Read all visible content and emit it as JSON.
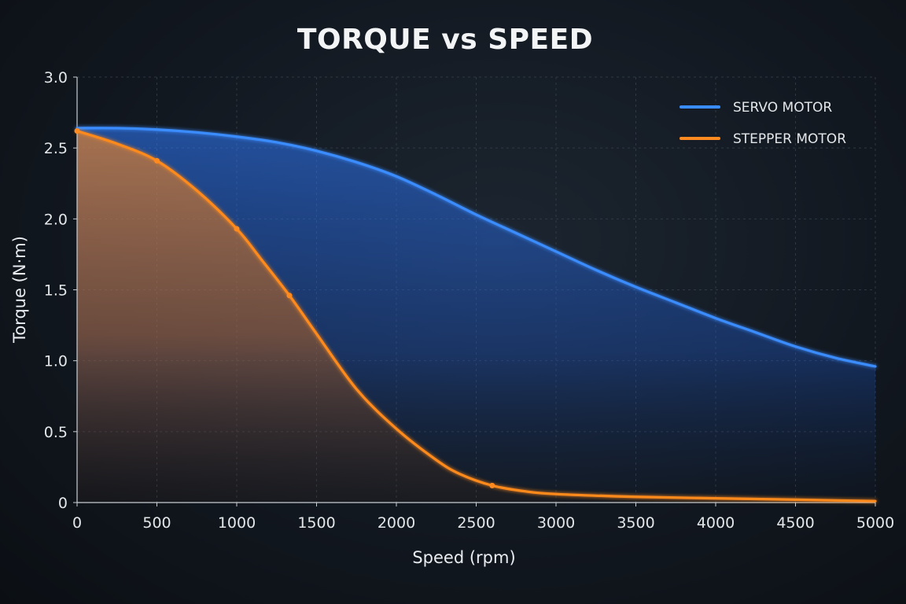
{
  "chart_data": {
    "type": "area",
    "title": "TORQUE vs SPEED",
    "xlabel": "Speed (rpm)",
    "ylabel": "Torque (N·m)",
    "xlim": [
      0,
      5000
    ],
    "ylim": [
      0,
      3.0
    ],
    "x_ticks": [
      "0",
      "500",
      "1000",
      "1500",
      "2000",
      "2500",
      "3000",
      "3500",
      "4000",
      "4500",
      "5000"
    ],
    "y_ticks": [
      "0",
      "0.5",
      "1.0",
      "1.5",
      "2.0",
      "2.5",
      "3.0"
    ],
    "grid": true,
    "legend_position": "top-right",
    "series": [
      {
        "name": "SERVO MOTOR",
        "color": "#3a8dff",
        "x": [
          0,
          250,
          500,
          750,
          1000,
          1250,
          1500,
          1750,
          2000,
          2250,
          2500,
          2750,
          3000,
          3250,
          3500,
          3750,
          4000,
          4250,
          4500,
          4750,
          5000
        ],
        "y": [
          2.64,
          2.64,
          2.63,
          2.61,
          2.58,
          2.54,
          2.48,
          2.4,
          2.3,
          2.17,
          2.03,
          1.9,
          1.77,
          1.64,
          1.52,
          1.41,
          1.3,
          1.2,
          1.1,
          1.02,
          0.96
        ]
      },
      {
        "name": "STEPPER MOTOR",
        "color": "#ff8a1f",
        "x": [
          0,
          250,
          500,
          750,
          1000,
          1150,
          1330,
          1500,
          1750,
          2000,
          2250,
          2400,
          2600,
          2800,
          3000,
          3500,
          4000,
          4500,
          5000
        ],
        "y": [
          2.62,
          2.53,
          2.41,
          2.2,
          1.93,
          1.72,
          1.46,
          1.19,
          0.8,
          0.52,
          0.3,
          0.2,
          0.12,
          0.08,
          0.06,
          0.04,
          0.03,
          0.02,
          0.01
        ],
        "markers": [
          [
            0,
            2.62
          ],
          [
            500,
            2.41
          ],
          [
            1000,
            1.93
          ],
          [
            1330,
            1.46
          ],
          [
            2600,
            0.12
          ]
        ]
      }
    ]
  }
}
